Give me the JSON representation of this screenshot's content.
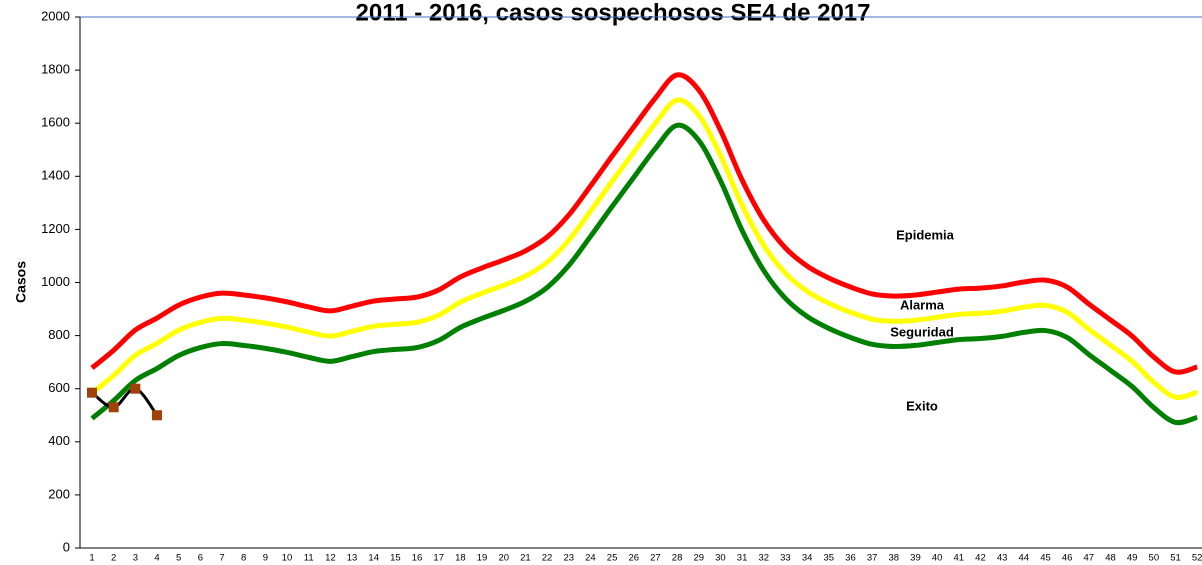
{
  "chart_data": {
    "type": "line",
    "title": "2011 - 2016, casos sospechosos SE4 de 2017",
    "y_label": "Casos",
    "annotations": [
      "Epidemia",
      "Alarma",
      "Seguridad",
      "Exito"
    ],
    "categories": [
      "1",
      "2",
      "3",
      "4",
      "5",
      "6",
      "7",
      "8",
      "9",
      "10",
      "11",
      "12",
      "13",
      "14",
      "15",
      "16",
      "17",
      "18",
      "19",
      "20",
      "21",
      "22",
      "23",
      "24",
      "25",
      "26",
      "27",
      "28",
      "29",
      "30",
      "31",
      "32",
      "33",
      "34",
      "35",
      "36",
      "37",
      "38",
      "39",
      "40",
      "41",
      "42",
      "43",
      "44",
      "45",
      "46",
      "47",
      "48",
      "49",
      "50",
      "51",
      "52"
    ],
    "series": [
      {
        "color": "#ff0000",
        "values": [
          678,
          745,
          821,
          866,
          915,
          945,
          960,
          953,
          942,
          927,
          908,
          893,
          911,
          930,
          938,
          945,
          972,
          1021,
          1055,
          1085,
          1119,
          1171,
          1254,
          1363,
          1476,
          1586,
          1695,
          1782,
          1725,
          1574,
          1386,
          1235,
          1130,
          1062,
          1017,
          983,
          957,
          949,
          953,
          964,
          975,
          979,
          987,
          1002,
          1009,
          983,
          919,
          859,
          798,
          719,
          663,
          682
        ]
      },
      {
        "color": "#ffff00",
        "values": [
          583,
          650,
          726,
          771,
          820,
          850,
          865,
          858,
          847,
          832,
          813,
          798,
          816,
          835,
          843,
          850,
          877,
          926,
          960,
          990,
          1024,
          1076,
          1159,
          1268,
          1381,
          1491,
          1600,
          1687,
          1630,
          1479,
          1291,
          1140,
          1035,
          967,
          922,
          888,
          862,
          854,
          858,
          869,
          880,
          884,
          892,
          907,
          914,
          888,
          824,
          764,
          703,
          624,
          568,
          587
        ]
      },
      {
        "color": "#008000",
        "values": [
          488,
          555,
          631,
          676,
          725,
          755,
          770,
          763,
          752,
          737,
          718,
          703,
          721,
          740,
          748,
          755,
          782,
          831,
          865,
          895,
          929,
          981,
          1064,
          1173,
          1286,
          1396,
          1505,
          1592,
          1535,
          1384,
          1196,
          1045,
          940,
          872,
          827,
          793,
          767,
          759,
          763,
          774,
          785,
          789,
          797,
          812,
          819,
          793,
          729,
          669,
          608,
          529,
          473,
          492
        ]
      },
      {
        "color": "#000000",
        "marker_color": "#a0400a",
        "values": [
          585,
          530,
          600,
          500,
          null,
          null,
          null,
          null,
          null,
          null,
          null,
          null,
          null,
          null,
          null,
          null,
          null,
          null,
          null,
          null,
          null,
          null,
          null,
          null,
          null,
          null,
          null,
          null,
          null,
          null,
          null,
          null,
          null,
          null,
          null,
          null,
          null,
          null,
          null,
          null,
          null,
          null,
          null,
          null,
          null,
          null,
          null,
          null,
          null,
          null,
          null,
          null
        ]
      }
    ],
    "ylim": [
      0,
      2000
    ],
    "yticks": [
      0,
      200,
      400,
      600,
      800,
      1000,
      1200,
      1400,
      1600,
      1800,
      2000
    ],
    "grid": false
  }
}
